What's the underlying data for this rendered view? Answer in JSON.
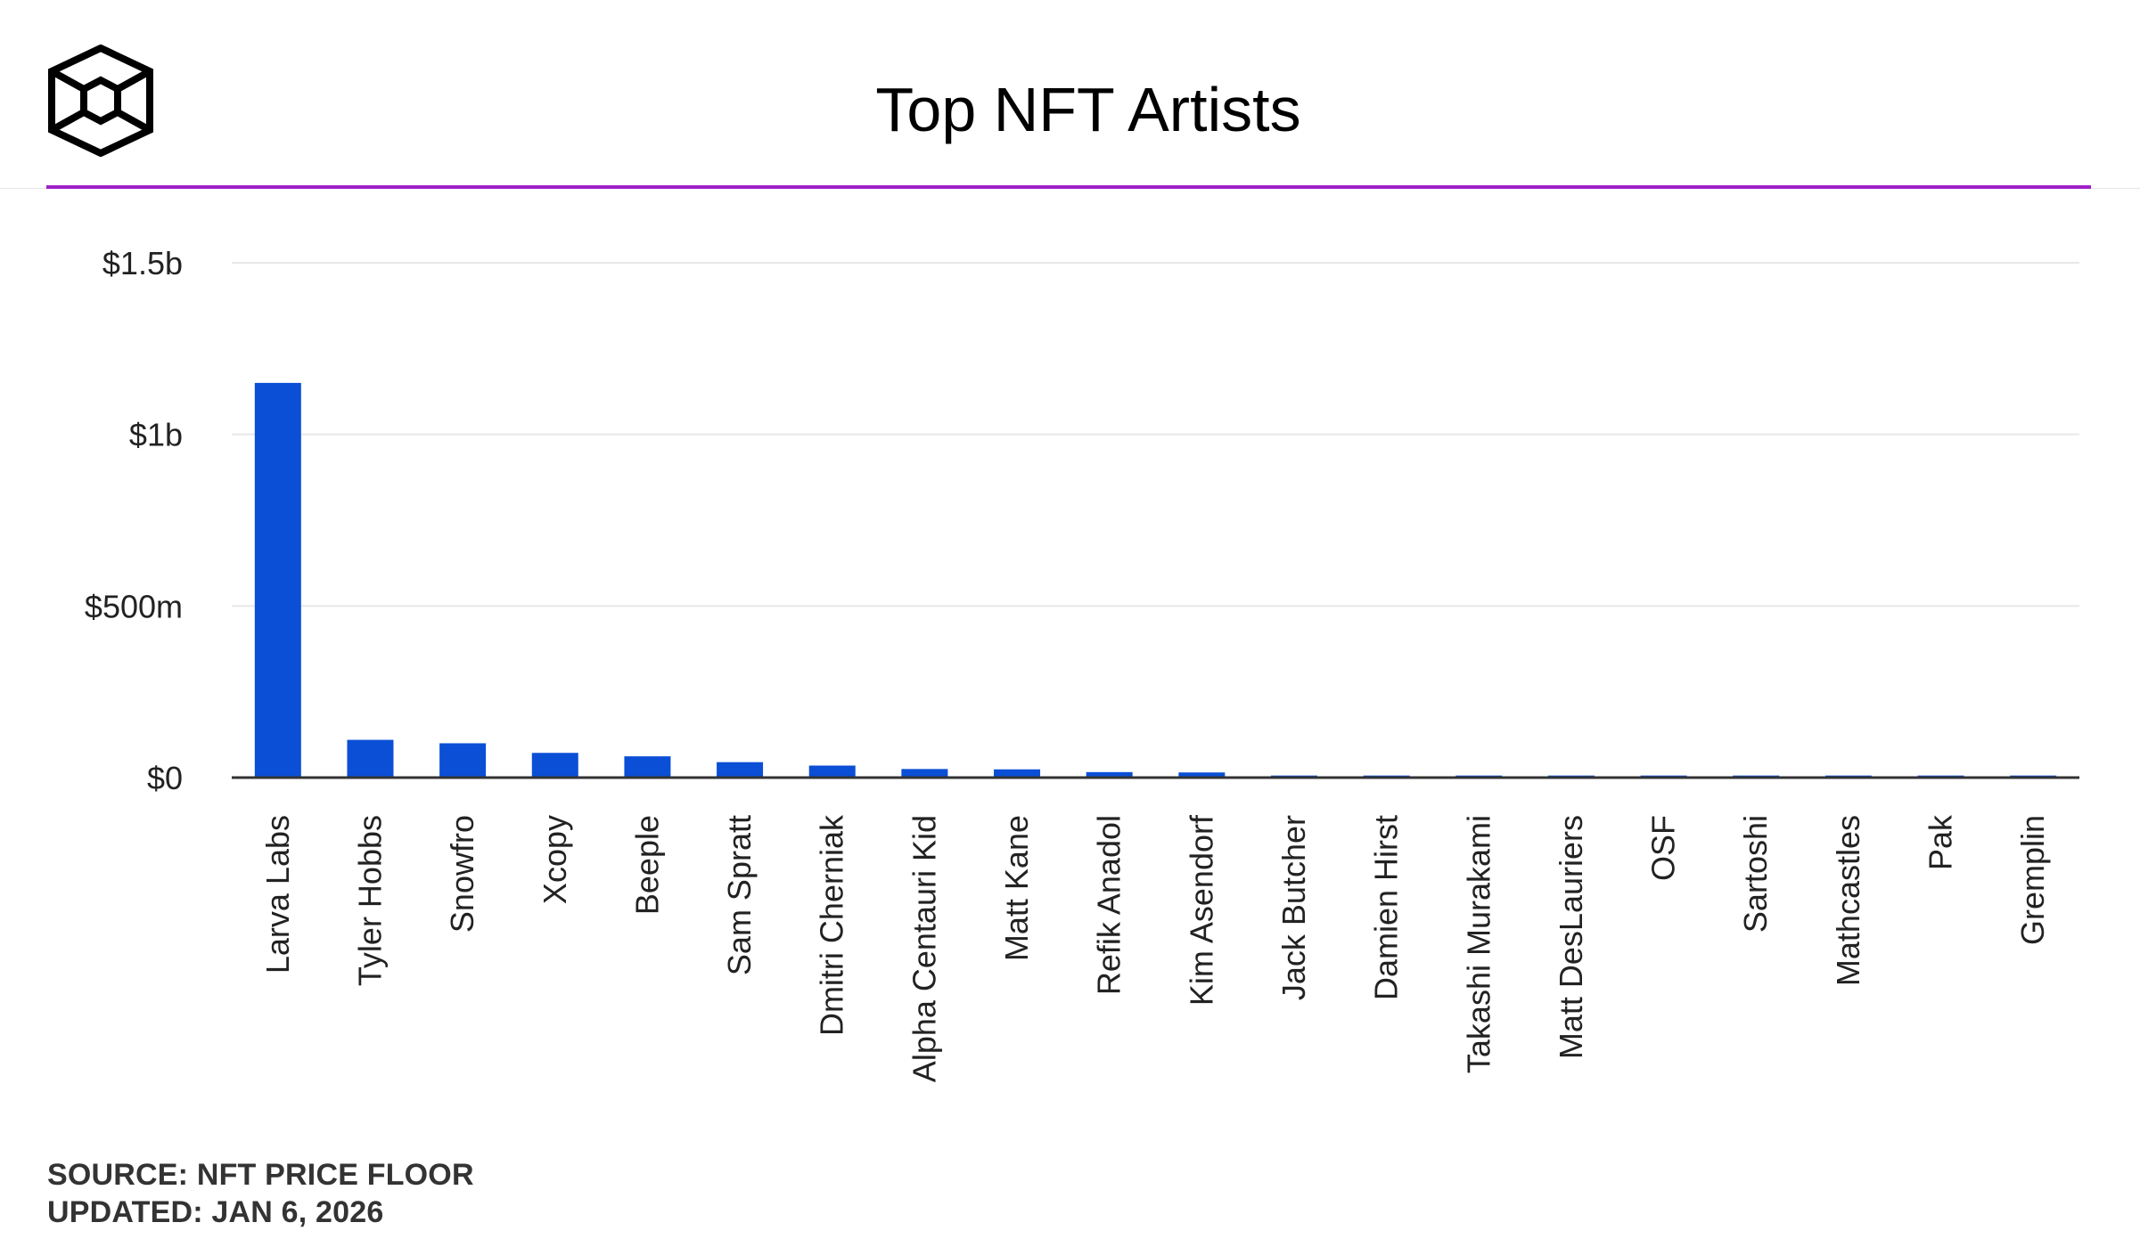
{
  "header": {
    "title": "Top NFT Artists"
  },
  "footer": {
    "source": "SOURCE: NFT PRICE FLOOR",
    "updated": "UPDATED: JAN 6, 2026"
  },
  "colors": {
    "bar": "#0b4fd6",
    "accent_rule": "#a020c8",
    "gridline": "#e8e8e8",
    "axis": "#333333",
    "text": "#222222"
  },
  "logo_icon": "cube-logo-icon",
  "chart_data": {
    "type": "bar",
    "title": "Top NFT Artists",
    "xlabel": "",
    "ylabel": "",
    "categories": [
      "Larva Labs",
      "Tyler Hobbs",
      "Snowfro",
      "Xcopy",
      "Beeple",
      "Sam Spratt",
      "Dmitri Cherniak",
      "Alpha Centauri Kid",
      "Matt Kane",
      "Refik Anadol",
      "Kim Asendorf",
      "Jack Butcher",
      "Damien Hirst",
      "Takashi Murakami",
      "Matt DesLauriers",
      "OSF",
      "Sartoshi",
      "Mathcastles",
      "Pak",
      "Gremplin"
    ],
    "values": [
      1150000000,
      110000000,
      100000000,
      72000000,
      62000000,
      45000000,
      35000000,
      25000000,
      24000000,
      16000000,
      15000000,
      6000000,
      6000000,
      6000000,
      6000000,
      6000000,
      6000000,
      6000000,
      6000000,
      6000000
    ],
    "ylim": [
      0,
      1500000000
    ],
    "yticks": [
      0,
      500000000,
      1000000000,
      1500000000
    ],
    "ytick_labels": [
      "$0",
      "$500m",
      "$1b",
      "$1.5b"
    ],
    "grid": true,
    "legend": "none"
  }
}
